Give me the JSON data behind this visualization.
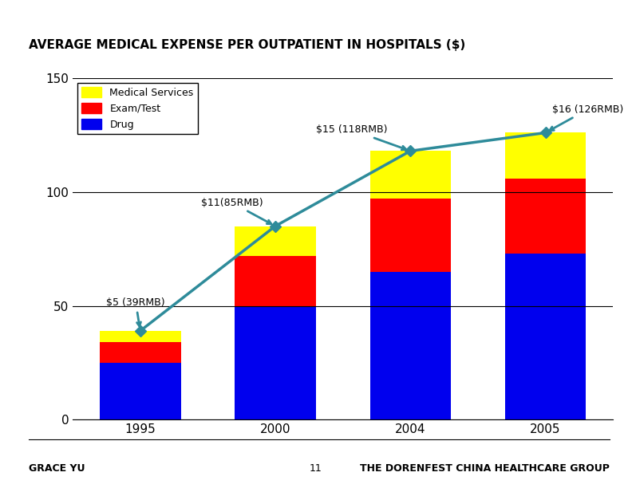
{
  "categories": [
    "1995",
    "2000",
    "2004",
    "2005"
  ],
  "drug": [
    25,
    50,
    65,
    73
  ],
  "exam_test": [
    9,
    22,
    32,
    33
  ],
  "medical_services": [
    5,
    13,
    21,
    20
  ],
  "totals": [
    39,
    85,
    118,
    126
  ],
  "line_labels": [
    "$5 (39RMB)",
    "$11(85RMB)",
    "$15 (118RMB)",
    "$16 (126RMB)"
  ],
  "color_drug": "#0000EE",
  "color_exam": "#FF0000",
  "color_medical": "#FFFF00",
  "color_line": "#2E8B9A",
  "title": "AVERAGE MEDICAL EXPENSE PER OUTPATIENT IN HOSPITALS ($)",
  "title_bar_color": "#2878A0",
  "ylim": [
    0,
    150
  ],
  "yticks": [
    0,
    50,
    100,
    150
  ],
  "footer_left": "GRACE YU",
  "footer_center": "11",
  "footer_right": "THE DORENFEST CHINA HEALTHCARE GROUP",
  "bg_color": "#FFFFFF"
}
